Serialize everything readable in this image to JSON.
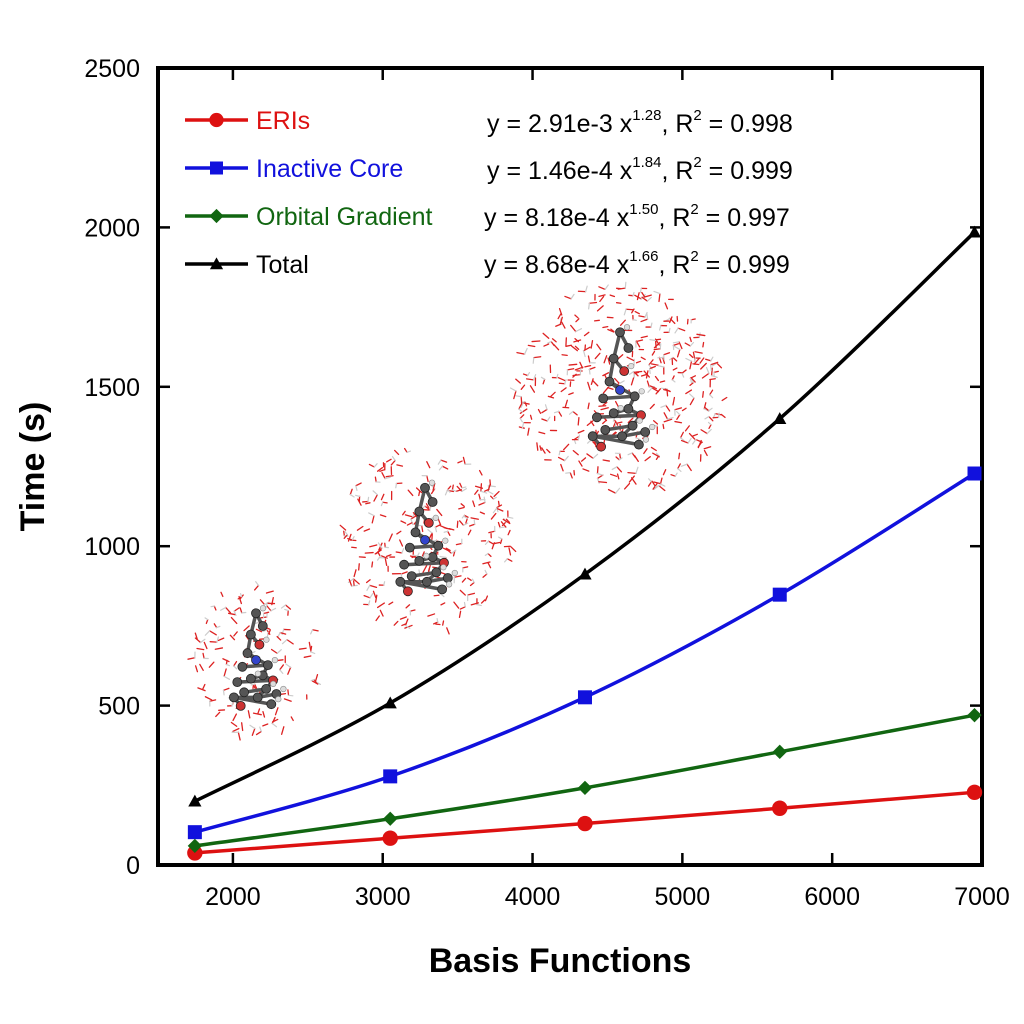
{
  "chart_data": {
    "type": "line",
    "xlabel": "Basis Functions",
    "ylabel": "Time (s)",
    "xlim": [
      1500,
      7000
    ],
    "ylim": [
      0,
      2500
    ],
    "xticks": [
      2000,
      3000,
      4000,
      5000,
      6000,
      7000
    ],
    "yticks": [
      0,
      500,
      1000,
      1500,
      2000,
      2500
    ],
    "x": [
      1746,
      3050,
      4350,
      5650,
      6950
    ],
    "series": [
      {
        "name": "ERIs",
        "color": "#dd1111",
        "marker": "circle",
        "values": [
          38,
          84,
          130,
          178,
          228
        ],
        "fit": {
          "prefix": "y = 2.91e-3 x",
          "exp": "1.28",
          "r2_prefix": ", R",
          "r2_sup": "2",
          "r2_value": " = 0.998"
        }
      },
      {
        "name": "Inactive Core",
        "color": "#1111dd",
        "marker": "square",
        "values": [
          103,
          278,
          526,
          848,
          1228
        ],
        "fit": {
          "prefix": "y = 1.46e-4 x",
          "exp": "1.84",
          "r2_prefix": ", R",
          "r2_sup": "2",
          "r2_value": " = 0.999"
        }
      },
      {
        "name": "Orbital Gradient",
        "color": "#116611",
        "marker": "diamond",
        "values": [
          60,
          145,
          242,
          355,
          470
        ],
        "fit": {
          "prefix": "y = 8.18e-4 x",
          "exp": "1.50",
          "r2_prefix": ", R",
          "r2_sup": "2",
          "r2_value": " = 0.997"
        }
      },
      {
        "name": "Total",
        "color": "#000000",
        "marker": "triangle",
        "values": [
          200,
          508,
          912,
          1400,
          1985
        ],
        "fit": {
          "prefix": "y = 8.68e-4 x",
          "exp": "1.66",
          "r2_prefix": ", R",
          "r2_sup": "2",
          "r2_value": " = 0.999"
        }
      }
    ],
    "legend_position": "top-left",
    "grid": false,
    "insets": [
      "solvated-molecule-small",
      "solvated-molecule-medium",
      "solvated-molecule-large"
    ]
  }
}
